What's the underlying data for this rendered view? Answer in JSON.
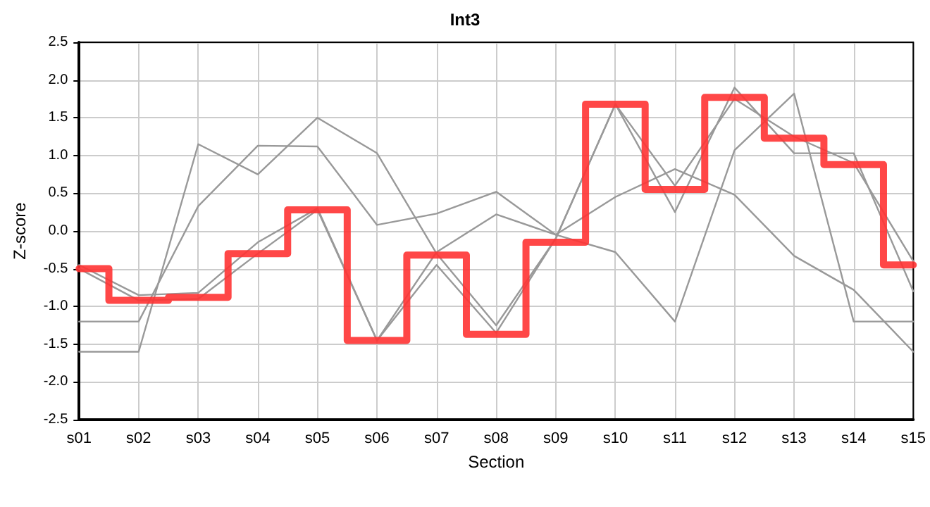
{
  "chart_data": {
    "type": "line",
    "title": "Int3",
    "xlabel": "Section",
    "ylabel": "Z-score",
    "categories": [
      "s01",
      "s02",
      "s03",
      "s04",
      "s05",
      "s06",
      "s07",
      "s08",
      "s09",
      "s10",
      "s11",
      "s12",
      "s13",
      "s14",
      "s15"
    ],
    "series": [
      {
        "color": "#999999",
        "values": [
          -1.6,
          -1.6,
          1.15,
          0.75,
          1.5,
          1.03,
          -0.3,
          -1.25,
          -0.1,
          1.68,
          0.25,
          1.9,
          1.03,
          1.03,
          -0.8
        ]
      },
      {
        "color": "#999999",
        "values": [
          -1.2,
          -1.2,
          0.33,
          1.13,
          1.12,
          0.08,
          0.23,
          0.52,
          -0.05,
          -0.28,
          -1.2,
          1.07,
          1.82,
          -1.2,
          -1.2
        ]
      },
      {
        "color": "#999999",
        "values": [
          -0.45,
          -0.85,
          -0.82,
          -0.15,
          0.3,
          -1.45,
          -0.28,
          0.22,
          -0.05,
          0.45,
          0.82,
          0.48,
          -0.33,
          -0.78,
          -1.6
        ]
      },
      {
        "color": "#999999",
        "values": [
          -0.5,
          -0.92,
          -0.9,
          -0.3,
          0.28,
          -1.45,
          -0.45,
          -1.35,
          -0.1,
          1.68,
          0.6,
          1.75,
          1.25,
          0.9,
          -0.4
        ]
      },
      {
        "type": "step",
        "color": "#ff3333",
        "values": [
          -0.5,
          -0.92,
          -0.88,
          -0.3,
          0.28,
          -1.45,
          -0.32,
          -1.37,
          -0.15,
          1.68,
          0.55,
          1.77,
          1.23,
          0.88,
          -0.45
        ]
      }
    ],
    "ylim": [
      -2.5,
      2.5
    ],
    "yticks": [
      -2.5,
      {
        "value": -2,
        "label": "-2.0"
      },
      -1.5,
      {
        "value": -1,
        "label": "-1.0"
      },
      -0.5,
      {
        "value": 0,
        "label": "0.0"
      },
      0.5,
      {
        "value": 1,
        "label": "1.0"
      },
      1.5,
      {
        "value": 2,
        "label": "2.0"
      },
      2.5
    ],
    "grid": true,
    "marker": "none",
    "line_style": "solid"
  }
}
